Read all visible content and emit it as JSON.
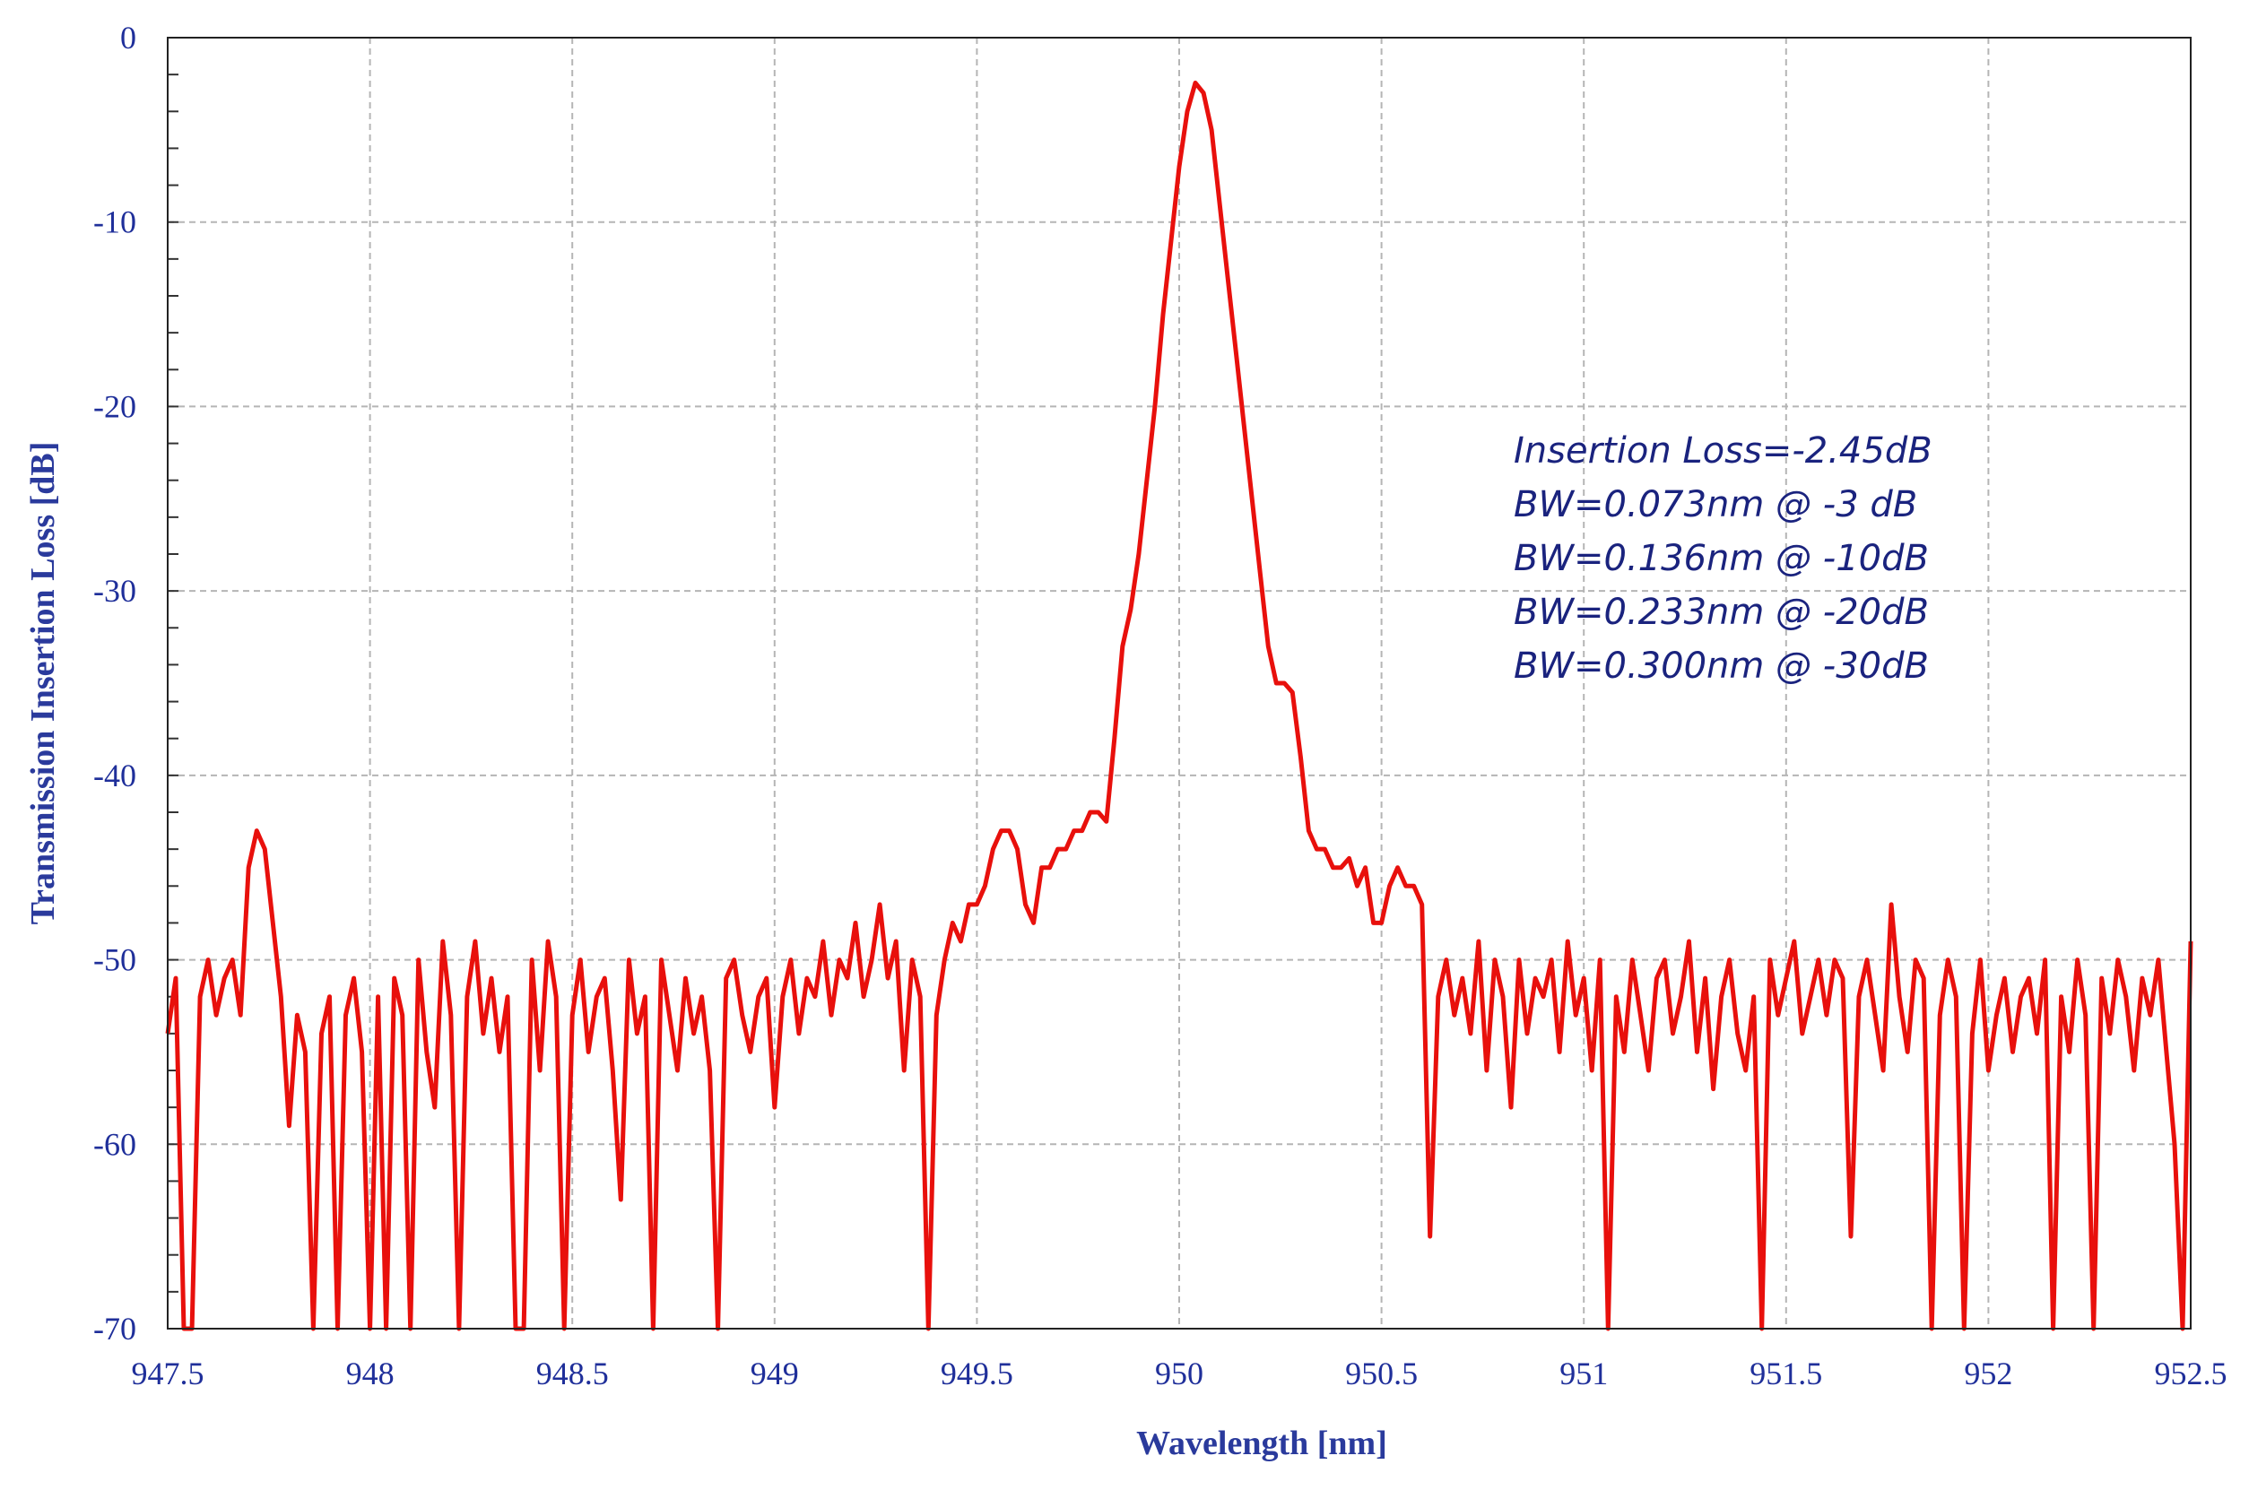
{
  "chart_data": {
    "type": "line",
    "title": "",
    "xlabel": "Wavelength [nm]",
    "ylabel": "Transmission Insertion Loss [dB]",
    "xlim": [
      947.5,
      952.5
    ],
    "ylim": [
      -70,
      0
    ],
    "xticks": [
      "947.5",
      "948",
      "948.5",
      "949",
      "949.5",
      "950",
      "950.5",
      "951",
      "951.5",
      "952",
      "952.5"
    ],
    "yticks": [
      "0",
      "-10",
      "-20",
      "-30",
      "-40",
      "-50",
      "-60",
      "-70"
    ],
    "grid": true,
    "line_color": "#e8100c",
    "annotations": [
      "Insertion Loss=-2.45dB",
      "BW=0.073nm @ -3 dB",
      "BW=0.136nm @ -10dB",
      "BW=0.233nm @ -20dB",
      "BW=0.300nm @ -30dB"
    ],
    "series": [
      {
        "x": [
          947.5,
          947.52,
          947.54,
          947.56,
          947.58,
          947.6,
          947.62,
          947.64,
          947.66,
          947.68,
          947.7,
          947.72,
          947.74,
          947.76,
          947.78,
          947.8,
          947.82,
          947.84,
          947.86,
          947.88,
          947.9,
          947.92,
          947.94,
          947.96,
          947.98,
          948.0,
          948.02,
          948.04,
          948.06,
          948.08,
          948.1,
          948.12,
          948.14,
          948.16,
          948.18,
          948.2,
          948.22,
          948.24,
          948.26,
          948.28,
          948.3,
          948.32,
          948.34,
          948.36,
          948.38,
          948.4,
          948.42,
          948.44,
          948.46,
          948.48,
          948.5,
          948.52,
          948.54,
          948.56,
          948.58,
          948.6,
          948.62,
          948.64,
          948.66,
          948.68,
          948.7,
          948.72,
          948.74,
          948.76,
          948.78,
          948.8,
          948.82,
          948.84,
          948.86,
          948.88,
          948.9,
          948.92,
          948.94,
          948.96,
          948.98,
          949.0,
          949.02,
          949.04,
          949.06,
          949.08,
          949.1,
          949.12,
          949.14,
          949.16,
          949.18,
          949.2,
          949.22,
          949.24,
          949.26,
          949.28,
          949.3,
          949.32,
          949.34,
          949.36,
          949.38,
          949.4,
          949.42,
          949.44,
          949.46,
          949.48,
          949.5,
          949.52,
          949.54,
          949.56,
          949.58,
          949.6,
          949.62,
          949.64,
          949.66,
          949.68,
          949.7,
          949.72,
          949.74,
          949.76,
          949.78,
          949.8,
          949.82,
          949.84,
          949.86,
          949.88,
          949.9,
          949.92,
          949.94,
          949.96,
          949.98,
          950.0,
          950.02,
          950.04,
          950.06,
          950.08,
          950.1,
          950.12,
          950.14,
          950.16,
          950.18,
          950.2,
          950.22,
          950.24,
          950.26,
          950.28,
          950.3,
          950.32,
          950.34,
          950.36,
          950.38,
          950.4,
          950.42,
          950.44,
          950.46,
          950.48,
          950.5,
          950.52,
          950.54,
          950.56,
          950.58,
          950.6,
          950.62,
          950.64,
          950.66,
          950.68,
          950.7,
          950.72,
          950.74,
          950.76,
          950.78,
          950.8,
          950.82,
          950.84,
          950.86,
          950.88,
          950.9,
          950.92,
          950.94,
          950.96,
          950.98,
          951.0,
          951.02,
          951.04,
          951.06,
          951.08,
          951.1,
          951.12,
          951.14,
          951.16,
          951.18,
          951.2,
          951.22,
          951.24,
          951.26,
          951.28,
          951.3,
          951.32,
          951.34,
          951.36,
          951.38,
          951.4,
          951.42,
          951.44,
          951.46,
          951.48,
          951.5,
          951.52,
          951.54,
          951.56,
          951.58,
          951.6,
          951.62,
          951.64,
          951.66,
          951.68,
          951.7,
          951.72,
          951.74,
          951.76,
          951.78,
          951.8,
          951.82,
          951.84,
          951.86,
          951.88,
          951.9,
          951.92,
          951.94,
          951.96,
          951.98,
          952.0,
          952.02,
          952.04,
          952.06,
          952.08,
          952.1,
          952.12,
          952.14,
          952.16,
          952.18,
          952.2,
          952.22,
          952.24,
          952.26,
          952.28,
          952.3,
          952.32,
          952.34,
          952.36,
          952.38,
          952.4,
          952.42,
          952.44,
          952.46,
          952.48,
          952.5
        ],
        "y": [
          -54,
          -51,
          -70,
          -70,
          -52,
          -50,
          -53,
          -51,
          -50,
          -53,
          -45,
          -43,
          -44,
          -48,
          -52,
          -59,
          -53,
          -55,
          -70,
          -54,
          -52,
          -70,
          -53,
          -51,
          -55,
          -70,
          -52,
          -70,
          -51,
          -53,
          -70,
          -50,
          -55,
          -58,
          -49,
          -53,
          -70,
          -52,
          -49,
          -54,
          -51,
          -55,
          -52,
          -70,
          -70,
          -50,
          -56,
          -49,
          -52,
          -70,
          -53,
          -50,
          -55,
          -52,
          -51,
          -56,
          -63,
          -50,
          -54,
          -52,
          -70,
          -50,
          -53,
          -56,
          -51,
          -54,
          -52,
          -56,
          -70,
          -51,
          -50,
          -53,
          -55,
          -52,
          -51,
          -58,
          -52,
          -50,
          -54,
          -51,
          -52,
          -49,
          -53,
          -50,
          -51,
          -48,
          -52,
          -50,
          -47,
          -51,
          -49,
          -56,
          -50,
          -52,
          -70,
          -53,
          -50,
          -48,
          -49,
          -47,
          -47,
          -46,
          -44,
          -43,
          -43,
          -44,
          -47,
          -48,
          -45,
          -45,
          -44,
          -44,
          -43,
          -43,
          -42,
          -42,
          -42.5,
          -38,
          -33,
          -31,
          -28,
          -24,
          -20,
          -15,
          -11,
          -7,
          -4,
          -2.45,
          -3,
          -5,
          -9,
          -13,
          -17,
          -21,
          -25,
          -29,
          -33,
          -35,
          -35,
          -35.5,
          -39,
          -43,
          -44,
          -44,
          -45,
          -45,
          -44.5,
          -46,
          -45,
          -48,
          -48,
          -46,
          -45,
          -46,
          -46,
          -47,
          -65,
          -52,
          -50,
          -53,
          -51,
          -54,
          -49,
          -56,
          -50,
          -52,
          -58,
          -50,
          -54,
          -51,
          -52,
          -50,
          -55,
          -49,
          -53,
          -51,
          -56,
          -50,
          -70,
          -52,
          -55,
          -50,
          -53,
          -56,
          -51,
          -50,
          -54,
          -52,
          -49,
          -55,
          -51,
          -57,
          -52,
          -50,
          -54,
          -56,
          -52,
          -70,
          -50,
          -53,
          -51,
          -49,
          -54,
          -52,
          -50,
          -53,
          -50,
          -51,
          -65,
          -52,
          -50,
          -53,
          -56,
          -47,
          -52,
          -55,
          -50,
          -51,
          -70,
          -53,
          -50,
          -52,
          -70,
          -54,
          -50,
          -56,
          -53,
          -51,
          -55,
          -52,
          -51,
          -54,
          -50,
          -70,
          -52,
          -55,
          -50,
          -53,
          -70,
          -51,
          -54,
          -50,
          -52,
          -56,
          -51,
          -53,
          -50,
          -55,
          -60,
          -70,
          -49
        ]
      }
    ]
  }
}
